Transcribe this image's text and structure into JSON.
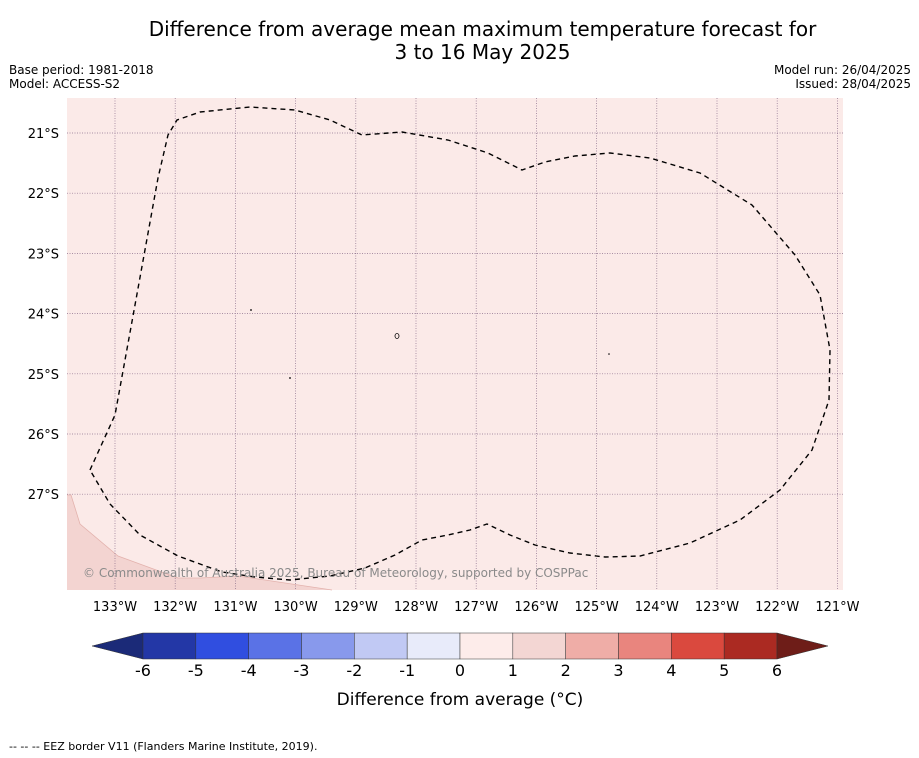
{
  "title_line1": "Difference from average mean maximum temperature forecast for",
  "title_line2": "3 to 16 May 2025",
  "base_period": "Base period: 1981-2018",
  "model": "Model: ACCESS-S2",
  "model_run": "Model run: 26/04/2025",
  "issued": "Issued: 28/04/2025",
  "copyright": "© Commonwealth of Australia 2025, Bureau of Meteorology, supported by COSPPac",
  "footer_note": "-- -- -- EEZ border V11 (Flanders Marine Institute, 2019).",
  "map": {
    "lon_labels": [
      "133°W",
      "132°W",
      "131°W",
      "130°W",
      "129°W",
      "128°W",
      "127°W",
      "126°W",
      "125°W",
      "124°W",
      "123°W",
      "122°W",
      "121°W"
    ],
    "lat_labels": [
      "21°S",
      "22°S",
      "23°S",
      "24°S",
      "25°S",
      "26°S",
      "27°S"
    ],
    "background_color": "#fbeae8",
    "corner_shade_color": "#f3d4d1",
    "eez_border_color": "#000000",
    "grid_color": "#8c6f8c"
  },
  "colorbar": {
    "title": "Difference from average (°C)",
    "tick_labels": [
      "-6",
      "-5",
      "-4",
      "-3",
      "-2",
      "-1",
      "0",
      "1",
      "2",
      "3",
      "4",
      "5",
      "6"
    ],
    "colors": [
      "#2337a6",
      "#304ee0",
      "#5a72e6",
      "#8899ec",
      "#c1c9f4",
      "#e8ebfa",
      "#fdecea",
      "#f3d6d3",
      "#efada7",
      "#e9857e",
      "#da493e",
      "#ab2a22"
    ],
    "under_color": "#1b2a78",
    "over_color": "#6e1d18"
  },
  "chart_data": {
    "type": "heatmap",
    "title": "Difference from average mean maximum temperature forecast for 3 to 16 May 2025",
    "xlabel": "",
    "ylabel": "",
    "colorbar_label": "Difference from average (°C)",
    "colorbar_range": [
      -6,
      6
    ],
    "colorbar_steps": [
      -6,
      -5,
      -4,
      -3,
      -2,
      -1,
      0,
      1,
      2,
      3,
      4,
      5,
      6
    ],
    "lon_range_deg_west": [
      133.8,
      120.9
    ],
    "lat_range_deg_south": [
      20.6,
      28.8
    ],
    "dominant_value_band": [
      0,
      1
    ],
    "south_west_corner_band": [
      1,
      2
    ]
  }
}
